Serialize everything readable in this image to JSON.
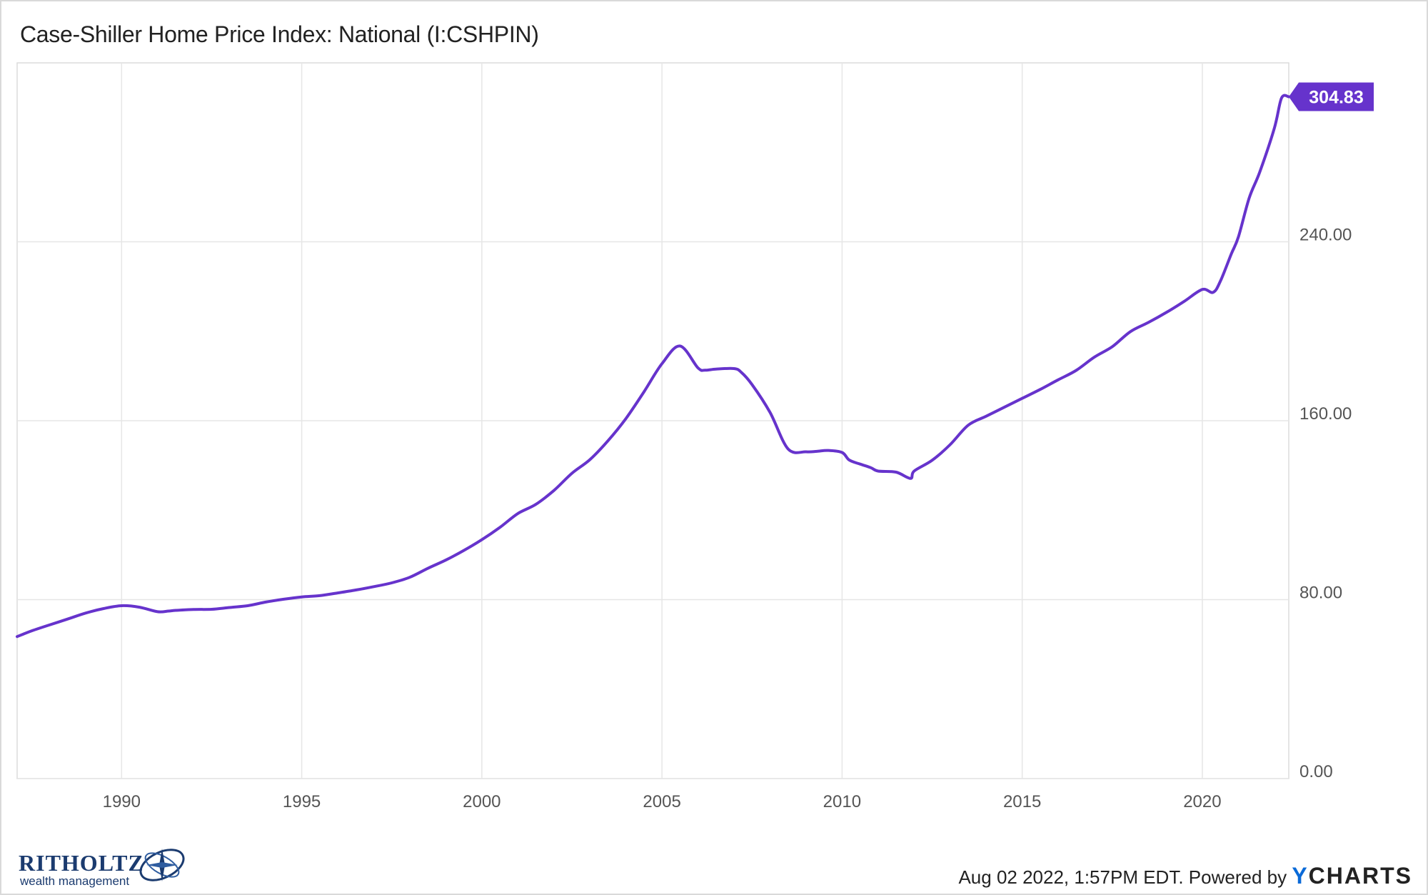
{
  "header": {
    "title": "Case-Shiller Home Price Index: National (I:CSHPIN)"
  },
  "chart_data": {
    "type": "line",
    "title": "Case-Shiller Home Price Index: National (I:CSHPIN)",
    "xlabel": "",
    "ylabel": "",
    "xlim": [
      1987.1,
      2022.4
    ],
    "ylim": [
      0,
      320
    ],
    "x_ticks": [
      "1990",
      "1995",
      "2000",
      "2005",
      "2010",
      "2015",
      "2020"
    ],
    "y_ticks": [
      "0.00",
      "80.00",
      "160.00",
      "240.00"
    ],
    "grid": true,
    "y_axis_position": "right",
    "line_color": "#6633cc",
    "last_value_label": "304.83",
    "series": [
      {
        "x": [
          1987.1,
          1987.5,
          1988,
          1988.5,
          1989,
          1989.5,
          1990,
          1990.5,
          1991,
          1991.3,
          1991.5,
          1992,
          1992.5,
          1993,
          1993.5,
          1994,
          1994.5,
          1995,
          1995.5,
          1996,
          1996.5,
          1997,
          1997.5,
          1998,
          1998.5,
          1999,
          1999.5,
          2000,
          2000.5,
          2001,
          2001.5,
          2002,
          2002.5,
          2003,
          2003.5,
          2004,
          2004.5,
          2005,
          2005.5,
          2006,
          2006.2,
          2006.5,
          2007,
          2007.2,
          2007.5,
          2008,
          2008.5,
          2009,
          2009.3,
          2009.6,
          2010,
          2010.2,
          2010.5,
          2010.8,
          2011,
          2011.5,
          2011.9,
          2012,
          2012.5,
          2013,
          2013.5,
          2014,
          2014.5,
          2015,
          2015.5,
          2016,
          2016.5,
          2017,
          2017.5,
          2018,
          2018.5,
          2019,
          2019.5,
          2020,
          2020.3,
          2020.5,
          2020.8,
          2021,
          2021.3,
          2021.6,
          2022,
          2022.2,
          2022.4
        ],
        "y": [
          63.5,
          66,
          68.7,
          71.3,
          74,
          76,
          77.3,
          76.6,
          74.6,
          74.9,
          75.2,
          75.6,
          75.7,
          76.5,
          77.3,
          78.9,
          80.2,
          81.2,
          81.8,
          83,
          84.3,
          85.8,
          87.5,
          90,
          94,
          97.7,
          102,
          106.8,
          112.3,
          118.5,
          122.6,
          128.8,
          136.5,
          142.6,
          151,
          161,
          172.9,
          185.5,
          193.4,
          183.6,
          182.6,
          183.1,
          183.3,
          181.7,
          176.2,
          163.7,
          147.4,
          146.1,
          146.3,
          146.7,
          145.8,
          142.4,
          140.6,
          139,
          137.5,
          137,
          134.2,
          137.5,
          142.3,
          149.3,
          158,
          162,
          166,
          170,
          174,
          178.3,
          182.5,
          188.4,
          193.1,
          199.8,
          203.9,
          208.4,
          213.4,
          218.7,
          217.4,
          222.3,
          234.4,
          242.1,
          259.5,
          271.4,
          290.8,
          304.3,
          304.83
        ]
      }
    ]
  },
  "logo": {
    "name": "RITHOLTZ",
    "sub": "wealth management"
  },
  "footer": {
    "timestamp": "Aug 02 2022, 1:57PM EDT.",
    "powered_by": "Powered by",
    "brand_y": "Y",
    "brand_rest": "CHARTS"
  }
}
